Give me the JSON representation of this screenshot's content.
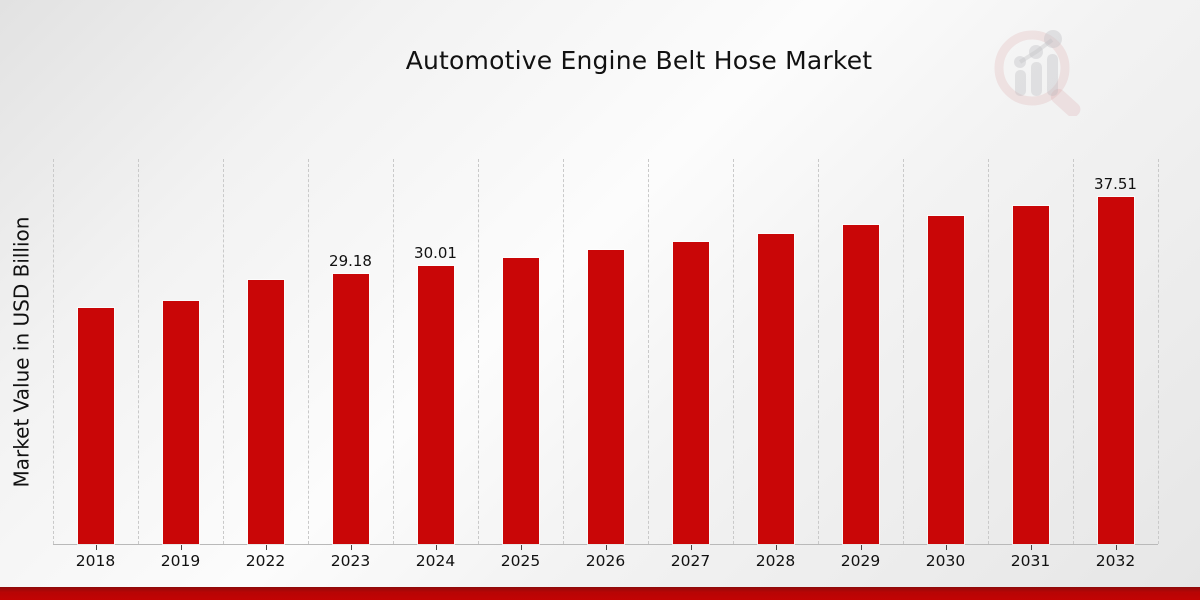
{
  "page": {
    "title": "Automotive Engine Belt Hose Market"
  },
  "chart_data": {
    "type": "bar",
    "title": "Automotive Engine Belt Hose Market",
    "xlabel": "",
    "ylabel": "Market Value in USD Billion",
    "categories": [
      "2018",
      "2019",
      "2022",
      "2023",
      "2024",
      "2025",
      "2026",
      "2027",
      "2028",
      "2029",
      "2030",
      "2031",
      "2032"
    ],
    "values": [
      25.5,
      26.25,
      28.55,
      29.18,
      30.01,
      30.86,
      31.73,
      32.63,
      33.55,
      34.5,
      35.48,
      36.48,
      37.51
    ],
    "data_labels": {
      "2023": "29.18",
      "2024": "30.01",
      "2032": "37.51"
    },
    "ylim": [
      0,
      41.61
    ],
    "grid": "vertical-dashed",
    "legend": "none",
    "colors": {
      "bar": "#c90607",
      "gridline": "#c9c9c9",
      "axis_line": "#b9b9b9",
      "text": "#111111",
      "footer_red": "#c30303"
    },
    "branding": {
      "watermark_icon": "magnifier-bar-chart-logo"
    }
  }
}
